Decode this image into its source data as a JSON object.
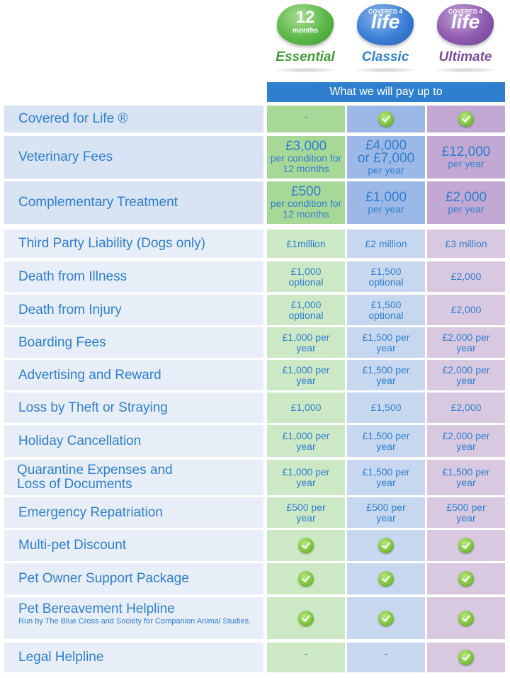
{
  "plans": [
    {
      "badge_top": "",
      "badge_main": "12",
      "badge_sub": "months",
      "name": "Essential",
      "color": "#4aa53a"
    },
    {
      "badge_top": "COVERED 4",
      "badge_main": "life",
      "badge_sub": "",
      "name": "Classic",
      "color": "#2f7fcf"
    },
    {
      "badge_top": "COVERED 4",
      "badge_main": "life",
      "badge_sub": "",
      "name": "Ultimate",
      "color": "#7b4a9c"
    }
  ],
  "pay_header": "What we will pay up to",
  "rows": [
    {
      "label": "Covered for Life ®",
      "note": "",
      "cells": [
        "-",
        "tick",
        "tick"
      ]
    },
    {
      "label": "Veterinary Fees",
      "note": "",
      "cells": [
        {
          "big": "£3,000",
          "small": "per condition for 12 months"
        },
        {
          "big": "£4,000",
          "mid": "or £7,000",
          "small": "per year"
        },
        {
          "big": "£12,000",
          "small": "per year"
        }
      ]
    },
    {
      "label": "Complementary Treatment",
      "note": "",
      "cells": [
        {
          "big": "£500",
          "small": "per condition for 12 months"
        },
        {
          "big": "£1,000",
          "small": "per year"
        },
        {
          "big": "£2,000",
          "small": "per year"
        }
      ]
    },
    {
      "label": "Third Party Liability (Dogs only)",
      "note": "",
      "cells": [
        "£1million",
        "£2 million",
        "£3 million"
      ]
    },
    {
      "label": "Death from Illness",
      "note": "",
      "cells": [
        "£1,000 optional",
        "£1,500 optional",
        "£2,000"
      ]
    },
    {
      "label": "Death from Injury",
      "note": "",
      "cells": [
        "£1,000 optional",
        "£1,500 optional",
        "£2,000"
      ]
    },
    {
      "label": "Boarding Fees",
      "note": "",
      "cells": [
        "£1,000 per year",
        "£1,500 per year",
        "£2,000 per year"
      ]
    },
    {
      "label": "Advertising and Reward",
      "note": "",
      "cells": [
        "£1,000 per year",
        "£1,500 per year",
        "£2,000 per year"
      ]
    },
    {
      "label": "Loss by Theft or Straying",
      "note": "",
      "cells": [
        "£1,000",
        "£1,500",
        "£2,000"
      ]
    },
    {
      "label": "Holiday Cancellation",
      "note": "",
      "cells": [
        "£1,000 per year",
        "£1,500 per year",
        "£2,000 per year"
      ]
    },
    {
      "label": "Quarantine Expenses and Loss of Documents",
      "note": "",
      "cells": [
        "£1,000 per year",
        "£1,500 per year",
        "£1,500 per year"
      ]
    },
    {
      "label": "Emergency Repatriation",
      "note": "",
      "cells": [
        "£500 per year",
        "£500 per year",
        "£500 per year"
      ]
    },
    {
      "label": "Multi-pet Discount",
      "note": "",
      "cells": [
        "tick",
        "tick",
        "tick"
      ]
    },
    {
      "label": "Pet Owner Support Package",
      "note": "",
      "cells": [
        "tick",
        "tick",
        "tick"
      ]
    },
    {
      "label": "Pet Bereavement Helpline",
      "note": "Run by The Blue Cross and Society for Companion Animal Studies.",
      "cells": [
        "tick",
        "tick",
        "tick"
      ]
    },
    {
      "label": "Legal Helpline",
      "note": "",
      "cells": [
        "-",
        "-",
        "tick"
      ]
    }
  ],
  "icons": {
    "tick": "check-circle-icon"
  },
  "colors": {
    "accent": "#2f7fcf",
    "green": "#cce8c5",
    "blue": "#c7d7ef",
    "purple": "#d8c8e0",
    "label": "#d8e3f3"
  }
}
